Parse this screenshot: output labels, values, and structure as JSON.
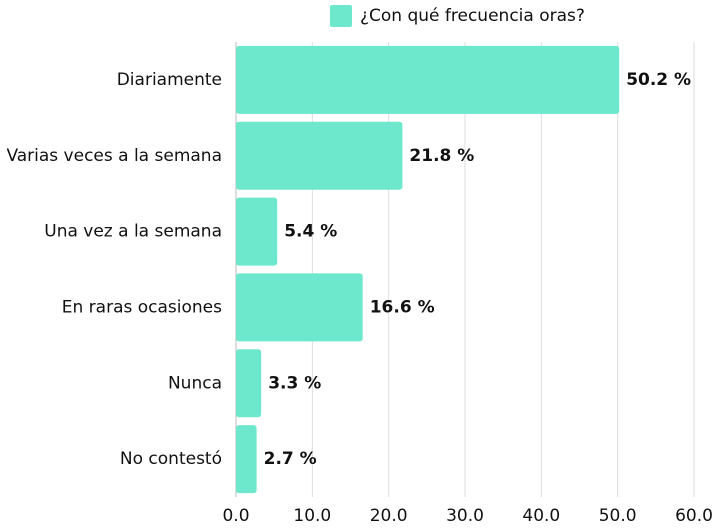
{
  "chart_data": {
    "type": "barh",
    "categories": [
      "Diariamente",
      "Varias veces a la semana",
      "Una vez a la semana",
      "En raras ocasiones",
      "Nunca",
      "No contestó"
    ],
    "series": [
      {
        "name": "¿Con qué frecuencia oras?",
        "color": "#6ee8cc",
        "values": [
          50.2,
          21.8,
          5.4,
          16.6,
          3.3,
          2.7
        ],
        "value_labels": [
          "50.2 %",
          "21.8 %",
          "5.4 %",
          "16.6 %",
          "3.3 %",
          "2.7 %"
        ]
      }
    ],
    "xlim": [
      0,
      60
    ],
    "xticks": [
      {
        "value": 0,
        "label": "0.0"
      },
      {
        "value": 10,
        "label": "10.0"
      },
      {
        "value": 20,
        "label": "20.0"
      },
      {
        "value": 30,
        "label": "30.0"
      },
      {
        "value": 40,
        "label": "40.0"
      },
      {
        "value": 50,
        "label": "50.0"
      },
      {
        "value": 60,
        "label": "60.0"
      }
    ],
    "grid": true,
    "legend": "top"
  }
}
